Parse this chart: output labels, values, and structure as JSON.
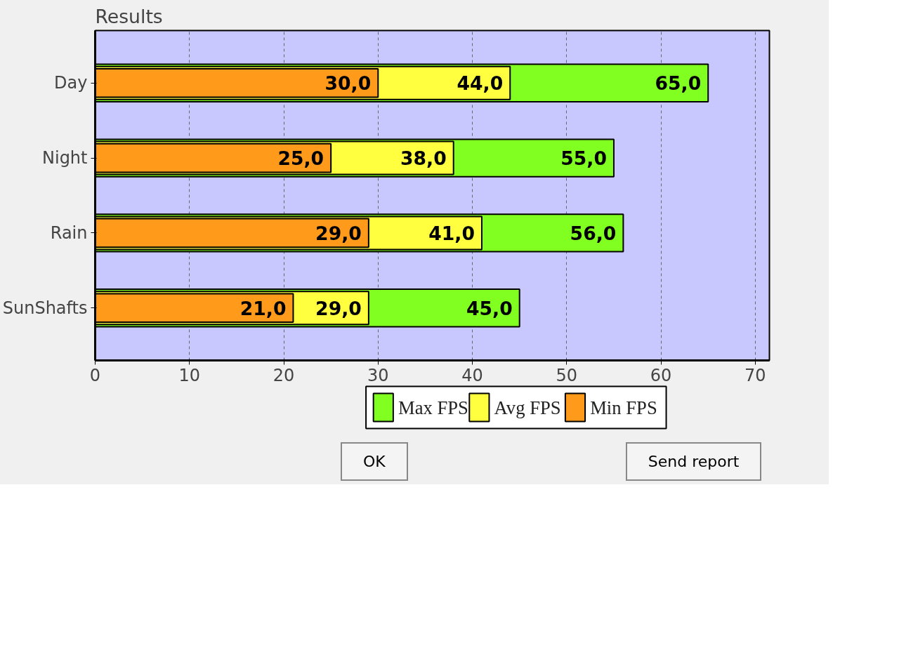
{
  "chart_data": {
    "type": "bar",
    "title": "Results",
    "orientation": "horizontal",
    "categories": [
      "Day",
      "Night",
      "Rain",
      "SunShafts"
    ],
    "series": [
      {
        "name": "Max FPS",
        "color": "#80ff20",
        "values": [
          65.0,
          55.0,
          56.0,
          45.0
        ],
        "value_labels": [
          "65,0",
          "55,0",
          "56,0",
          "45,0"
        ]
      },
      {
        "name": "Avg FPS",
        "color": "#ffff40",
        "values": [
          44.0,
          38.0,
          41.0,
          29.0
        ],
        "value_labels": [
          "44,0",
          "38,0",
          "41,0",
          "29,0"
        ]
      },
      {
        "name": "Min FPS",
        "color": "#ff9a1a",
        "values": [
          30.0,
          25.0,
          29.0,
          21.0
        ],
        "value_labels": [
          "30,0",
          "25,0",
          "29,0",
          "21,0"
        ]
      }
    ],
    "xlim": [
      0,
      71.5
    ],
    "xticks": [
      0,
      10,
      20,
      30,
      40,
      50,
      60,
      70
    ],
    "grid": "x",
    "legend": "bottom",
    "annotations": [
      "OK",
      "Send report"
    ]
  }
}
